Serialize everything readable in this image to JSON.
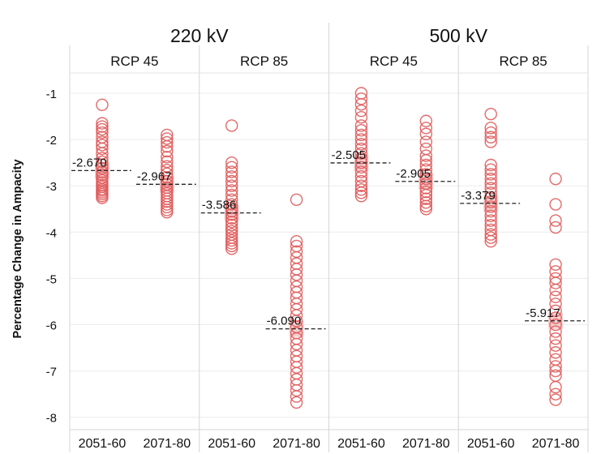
{
  "chart_data": {
    "type": "scatter",
    "ylabel": "Percentage Change in Ampacity",
    "yticks": [
      -1,
      -2,
      -3,
      -4,
      -5,
      -6,
      -7,
      -8
    ],
    "ylim": [
      -8.2,
      -0.7
    ],
    "marker_color": "#e05a5a",
    "mean_line_style": "dashed",
    "groups": [
      {
        "voltage": "220 kV",
        "scenarios": [
          {
            "rcp": "RCP 45",
            "periods": [
              {
                "period": "2051-60",
                "mean": -2.67,
                "mean_label": "-2.670",
                "values": [
                  -1.25,
                  -1.65,
                  -1.72,
                  -1.78,
                  -1.85,
                  -1.95,
                  -2.05,
                  -2.12,
                  -2.2,
                  -2.3,
                  -2.4,
                  -2.48,
                  -2.55,
                  -2.62,
                  -2.7,
                  -2.76,
                  -2.82,
                  -2.88,
                  -2.93,
                  -2.98,
                  -3.02,
                  -3.07,
                  -3.1,
                  -3.14,
                  -3.18,
                  -3.22,
                  -3.26
                ]
              },
              {
                "period": "2071-80",
                "mean": -2.967,
                "mean_label": "-2.967",
                "values": [
                  -1.9,
                  -1.98,
                  -2.06,
                  -2.15,
                  -2.25,
                  -2.38,
                  -2.48,
                  -2.58,
                  -2.66,
                  -2.74,
                  -2.82,
                  -2.9,
                  -2.97,
                  -3.04,
                  -3.1,
                  -3.16,
                  -3.22,
                  -3.28,
                  -3.34,
                  -3.4,
                  -3.46,
                  -3.52,
                  -3.57
                ]
              }
            ]
          },
          {
            "rcp": "RCP 85",
            "periods": [
              {
                "period": "2051-60",
                "mean": -3.586,
                "mean_label": "-3.586",
                "values": [
                  -1.7,
                  -2.5,
                  -2.6,
                  -2.7,
                  -2.8,
                  -2.9,
                  -3.0,
                  -3.1,
                  -3.2,
                  -3.3,
                  -3.4,
                  -3.48,
                  -3.55,
                  -3.62,
                  -3.7,
                  -3.78,
                  -3.85,
                  -3.92,
                  -3.98,
                  -4.05,
                  -4.12,
                  -4.18,
                  -4.24,
                  -4.3,
                  -4.36
                ]
              },
              {
                "period": "2071-80",
                "mean": -6.09,
                "mean_label": "-6.090",
                "values": [
                  -3.3,
                  -4.2,
                  -4.3,
                  -4.42,
                  -4.55,
                  -4.68,
                  -4.8,
                  -4.92,
                  -5.05,
                  -5.18,
                  -5.3,
                  -5.42,
                  -5.55,
                  -5.67,
                  -5.8,
                  -5.92,
                  -6.05,
                  -6.18,
                  -6.3,
                  -6.42,
                  -6.55,
                  -6.68,
                  -6.8,
                  -6.92,
                  -7.05,
                  -7.18,
                  -7.3,
                  -7.42,
                  -7.55,
                  -7.68
                ]
              }
            ]
          }
        ]
      },
      {
        "voltage": "500 kV",
        "scenarios": [
          {
            "rcp": "RCP 45",
            "periods": [
              {
                "period": "2051-60",
                "mean": -2.505,
                "mean_label": "-2.505",
                "values": [
                  -1.0,
                  -1.12,
                  -1.24,
                  -1.38,
                  -1.52,
                  -1.7,
                  -1.8,
                  -1.9,
                  -2.0,
                  -2.1,
                  -2.2,
                  -2.3,
                  -2.4,
                  -2.5,
                  -2.6,
                  -2.7,
                  -2.8,
                  -2.9,
                  -3.0,
                  -3.08,
                  -3.15,
                  -3.22
                ]
              },
              {
                "period": "2071-80",
                "mean": -2.905,
                "mean_label": "-2.905",
                "values": [
                  -1.6,
                  -1.75,
                  -1.88,
                  -2.05,
                  -2.2,
                  -2.35,
                  -2.45,
                  -2.55,
                  -2.65,
                  -2.75,
                  -2.85,
                  -2.95,
                  -3.05,
                  -3.13,
                  -3.2,
                  -3.28,
                  -3.36,
                  -3.44,
                  -3.5
                ]
              }
            ]
          },
          {
            "rcp": "RCP 85",
            "periods": [
              {
                "period": "2051-60",
                "mean": -3.379,
                "mean_label": "-3.379",
                "values": [
                  -1.45,
                  -1.75,
                  -1.85,
                  -1.95,
                  -2.05,
                  -2.55,
                  -2.65,
                  -2.75,
                  -2.85,
                  -2.95,
                  -3.05,
                  -3.15,
                  -3.25,
                  -3.35,
                  -3.45,
                  -3.55,
                  -3.65,
                  -3.75,
                  -3.85,
                  -3.95,
                  -4.05,
                  -4.12,
                  -4.2
                ]
              },
              {
                "period": "2071-80",
                "mean": -5.917,
                "mean_label": "-5.917",
                "values": [
                  -2.85,
                  -3.4,
                  -3.75,
                  -3.9,
                  -4.7,
                  -4.85,
                  -5.0,
                  -5.1,
                  -5.25,
                  -5.4,
                  -5.55,
                  -5.7,
                  -5.85,
                  -6.0,
                  -6.15,
                  -6.3,
                  -6.45,
                  -6.6,
                  -6.75,
                  -6.9,
                  -7.0,
                  -7.1,
                  -7.35,
                  -7.5,
                  -7.62
                ]
              }
            ]
          }
        ]
      }
    ]
  }
}
